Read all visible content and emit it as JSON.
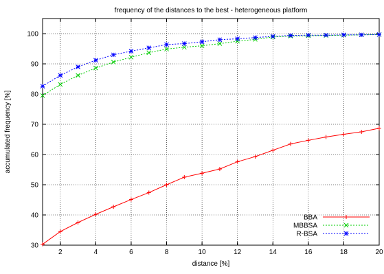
{
  "chart_data": {
    "type": "line",
    "title": "frequency of the distances to the best - heterogeneous platform",
    "xlabel": "distance [%]",
    "ylabel": "accumulated frequency [%]",
    "xlim": [
      1,
      20
    ],
    "ylim": [
      30,
      105
    ],
    "xticks": [
      2,
      4,
      6,
      8,
      10,
      12,
      14,
      16,
      18,
      20
    ],
    "yticks": [
      30,
      40,
      50,
      60,
      70,
      80,
      90,
      100
    ],
    "grid": true,
    "legend_position": "bottom-right",
    "x": [
      1,
      2,
      3,
      4,
      5,
      6,
      7,
      8,
      9,
      10,
      11,
      12,
      13,
      14,
      15,
      16,
      17,
      18,
      19,
      20
    ],
    "series": [
      {
        "name": "BBA",
        "color": "#ff0000",
        "marker": "plus",
        "dashed": false,
        "values": [
          30.3,
          34.5,
          37.5,
          40.2,
          42.7,
          45.1,
          47.4,
          50.0,
          52.5,
          53.8,
          55.2,
          57.6,
          59.3,
          61.4,
          63.5,
          64.7,
          65.8,
          66.7,
          67.5,
          68.7
        ]
      },
      {
        "name": "MBBSA",
        "color": "#00cc00",
        "marker": "x",
        "dashed": true,
        "values": [
          79.5,
          83.2,
          86.2,
          88.6,
          90.6,
          92.2,
          93.7,
          94.9,
          95.5,
          96.0,
          96.7,
          97.5,
          98.1,
          98.9,
          99.2,
          99.3,
          99.4,
          99.5,
          99.6,
          99.7
        ]
      },
      {
        "name": "R-BSA",
        "color": "#0000ff",
        "marker": "star",
        "dashed": true,
        "values": [
          82.6,
          86.2,
          89.0,
          91.2,
          93.0,
          94.2,
          95.3,
          96.4,
          96.7,
          97.3,
          98.0,
          98.3,
          98.7,
          99.1,
          99.4,
          99.5,
          99.5,
          99.6,
          99.6,
          99.7
        ]
      }
    ]
  }
}
